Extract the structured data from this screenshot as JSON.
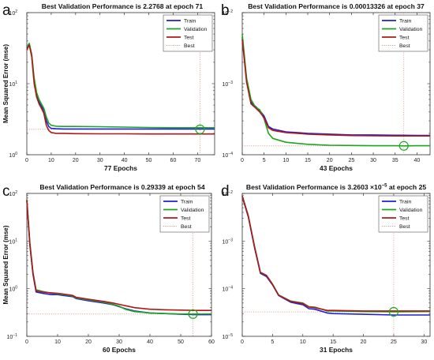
{
  "chart_data": [
    {
      "type": "line",
      "panel_label": "a",
      "title": "Best Validation Performance is 2.2768 at epoch 71",
      "xlabel": "77 Epochs",
      "ylabel": "Mean Squared Error  (mse)",
      "xlim": [
        0,
        77
      ],
      "xticks": [
        "0",
        "10",
        "20",
        "30",
        "40",
        "50",
        "60",
        "70"
      ],
      "xtick_values": [
        0,
        10,
        20,
        30,
        40,
        50,
        60,
        70
      ],
      "yscale": "log",
      "ylim": [
        1,
        100
      ],
      "ytick_exponents": [
        0,
        1,
        2
      ],
      "ytick_labels": [
        "10",
        "10",
        "10"
      ],
      "grid": false,
      "legend_position": "top-right",
      "best": {
        "x": 71,
        "y": 2.2768
      },
      "series": [
        {
          "name": "Train",
          "x": [
            0,
            1,
            2,
            3,
            4,
            5,
            6,
            7,
            8,
            9,
            10,
            12,
            15,
            20,
            30,
            40,
            50,
            60,
            70,
            77
          ],
          "y": [
            32,
            36,
            25,
            11,
            7,
            5.5,
            4.8,
            4.2,
            3,
            2.5,
            2.35,
            2.32,
            2.3,
            2.3,
            2.3,
            2.3,
            2.3,
            2.3,
            2.3,
            2.3
          ]
        },
        {
          "name": "Validation",
          "x": [
            0,
            1,
            2,
            3,
            4,
            5,
            6,
            7,
            8,
            9,
            10,
            12,
            15,
            20,
            30,
            40,
            50,
            60,
            70,
            77
          ],
          "y": [
            33,
            37,
            26,
            12,
            7.5,
            6,
            5.2,
            4.5,
            3.4,
            2.8,
            2.6,
            2.52,
            2.5,
            2.5,
            2.48,
            2.45,
            2.42,
            2.4,
            2.4,
            2.4
          ]
        },
        {
          "name": "Test",
          "x": [
            0,
            1,
            2,
            3,
            4,
            5,
            6,
            7,
            8,
            9,
            10,
            12,
            15,
            20,
            30,
            40,
            50,
            60,
            70,
            77
          ],
          "y": [
            30,
            35,
            24,
            10,
            6.5,
            5.2,
            4.5,
            3.8,
            2.6,
            2.2,
            2.05,
            2.0,
            2.0,
            1.98,
            1.97,
            1.97,
            1.96,
            1.96,
            1.96,
            1.96
          ]
        }
      ],
      "legend": [
        "Train",
        "Validation",
        "Test",
        "Best"
      ],
      "colors": {
        "Train": "#1f1fd6",
        "Validation": "#1ea51e",
        "Test": "#b01818",
        "Best": "#cc7766",
        "best_marker": "#1ea51e"
      }
    },
    {
      "type": "line",
      "panel_label": "b",
      "title": "Best Validation Performance is 0.00013326 at epoch 37",
      "xlabel": "43 Epochs",
      "ylabel": "",
      "xlim": [
        0,
        43
      ],
      "xticks": [
        "0",
        "5",
        "10",
        "15",
        "20",
        "25",
        "30",
        "35",
        "40"
      ],
      "xtick_values": [
        0,
        5,
        10,
        15,
        20,
        25,
        30,
        35,
        40
      ],
      "yscale": "log",
      "ylim": [
        0.0001,
        0.01
      ],
      "ytick_exponents": [
        -4,
        -3,
        -2
      ],
      "ytick_labels": [
        "10",
        "10",
        "10"
      ],
      "grid": false,
      "legend_position": "top-right",
      "best": {
        "x": 37,
        "y": 0.00013326
      },
      "series": [
        {
          "name": "Train",
          "x": [
            0,
            1,
            2,
            3,
            4,
            5,
            6,
            7,
            10,
            15,
            20,
            25,
            30,
            35,
            40,
            43
          ],
          "y": [
            0.0045,
            0.0011,
            0.00055,
            0.00048,
            0.00042,
            0.00035,
            0.00025,
            0.00023,
            0.00021,
            0.0002,
            0.000195,
            0.00019,
            0.00019,
            0.000188,
            0.000187,
            0.000187
          ]
        },
        {
          "name": "Validation",
          "x": [
            0,
            1,
            2,
            3,
            4,
            5,
            6,
            7,
            10,
            15,
            20,
            25,
            30,
            35,
            37,
            40,
            43
          ],
          "y": [
            0.005,
            0.0012,
            0.0006,
            0.00047,
            0.00043,
            0.00032,
            0.0002,
            0.00017,
            0.00015,
            0.00014,
            0.000136,
            0.000135,
            0.000134,
            0.000134,
            0.00013326,
            0.000134,
            0.000134
          ]
        },
        {
          "name": "Test",
          "x": [
            0,
            1,
            2,
            3,
            4,
            5,
            6,
            7,
            10,
            15,
            20,
            25,
            30,
            35,
            40,
            43
          ],
          "y": [
            0.0042,
            0.00105,
            0.00052,
            0.00046,
            0.0004,
            0.00033,
            0.00024,
            0.00022,
            0.000205,
            0.000195,
            0.00019,
            0.000186,
            0.000185,
            0.000184,
            0.000184,
            0.000184
          ]
        }
      ],
      "legend": [
        "Train",
        "Validation",
        "Test",
        "Best"
      ],
      "colors": {
        "Train": "#1f1fd6",
        "Validation": "#1ea51e",
        "Test": "#b01818",
        "Best": "#cc7766",
        "best_marker": "#1ea51e"
      }
    },
    {
      "type": "line",
      "panel_label": "c",
      "title": "Best Validation Performance is 0.29339 at epoch 54",
      "xlabel": "60 Epochs",
      "ylabel": "Mean Squared Error  (mse)",
      "xlim": [
        0,
        60
      ],
      "xticks": [
        "0",
        "10",
        "20",
        "30",
        "40",
        "50",
        "60"
      ],
      "xtick_values": [
        0,
        10,
        20,
        30,
        40,
        50,
        60
      ],
      "yscale": "log",
      "ylim": [
        0.1,
        100
      ],
      "ytick_exponents": [
        -1,
        0,
        1,
        2
      ],
      "ytick_labels": [
        "10",
        "10",
        "10",
        "10"
      ],
      "grid": false,
      "legend_position": "top-right",
      "best": {
        "x": 54,
        "y": 0.29339
      },
      "series": [
        {
          "name": "Train",
          "x": [
            0,
            1,
            2,
            3,
            5,
            8,
            10,
            12,
            15,
            16,
            20,
            25,
            28,
            30,
            32,
            35,
            40,
            45,
            50,
            55,
            60
          ],
          "y": [
            70,
            8,
            2,
            0.85,
            0.8,
            0.75,
            0.75,
            0.72,
            0.68,
            0.62,
            0.56,
            0.5,
            0.46,
            0.42,
            0.38,
            0.34,
            0.31,
            0.3,
            0.29,
            0.285,
            0.285
          ]
        },
        {
          "name": "Validation",
          "x": [
            0,
            1,
            2,
            3,
            5,
            8,
            10,
            12,
            15,
            16,
            20,
            25,
            28,
            30,
            32,
            35,
            40,
            45,
            50,
            54,
            60
          ],
          "y": [
            75,
            9,
            2.2,
            0.95,
            0.88,
            0.8,
            0.78,
            0.75,
            0.7,
            0.64,
            0.58,
            0.52,
            0.47,
            0.43,
            0.37,
            0.33,
            0.31,
            0.3,
            0.295,
            0.29339,
            0.295
          ]
        },
        {
          "name": "Test",
          "x": [
            0,
            1,
            2,
            3,
            5,
            8,
            10,
            12,
            15,
            16,
            20,
            25,
            28,
            30,
            32,
            35,
            40,
            45,
            50,
            55,
            60
          ],
          "y": [
            72,
            8.5,
            2.1,
            0.9,
            0.85,
            0.82,
            0.8,
            0.77,
            0.72,
            0.66,
            0.6,
            0.54,
            0.5,
            0.47,
            0.44,
            0.4,
            0.37,
            0.36,
            0.355,
            0.35,
            0.35
          ]
        }
      ],
      "legend": [
        "Train",
        "Validation",
        "Test",
        "Best"
      ],
      "colors": {
        "Train": "#1f1fd6",
        "Validation": "#1ea51e",
        "Test": "#b01818",
        "Best": "#cc7766",
        "best_marker": "#1ea51e"
      }
    },
    {
      "type": "line",
      "panel_label": "d",
      "title": "Best Validation Performance is 3.2603 ×10",
      "title_exponent": "−5",
      "title_suffix": " at epoch 25",
      "xlabel": "31 Epochs",
      "ylabel": "",
      "xlim": [
        0,
        31
      ],
      "xticks": [
        "0",
        "5",
        "10",
        "15",
        "20",
        "25",
        "30"
      ],
      "xtick_values": [
        0,
        5,
        10,
        15,
        20,
        25,
        30
      ],
      "yscale": "log",
      "ylim": [
        1e-05,
        0.01
      ],
      "ytick_exponents": [
        -5,
        -4,
        -3,
        -2
      ],
      "ytick_labels": [
        "10",
        "10",
        "10",
        "10"
      ],
      "grid": false,
      "legend_position": "top-right",
      "best": {
        "x": 25,
        "y": 3.2603e-05
      },
      "series": [
        {
          "name": "Train",
          "x": [
            0,
            1,
            2,
            3,
            4,
            5,
            6,
            8,
            10,
            11,
            12,
            14,
            15,
            20,
            25,
            30,
            31
          ],
          "y": [
            0.0085,
            0.0032,
            0.00075,
            0.00021,
            0.00018,
            0.00012,
            7.2e-05,
            5.2e-05,
            4.6e-05,
            3.8e-05,
            3.7e-05,
            3.1e-05,
            3e-05,
            2.9e-05,
            2.8e-05,
            2.8e-05,
            2.8e-05
          ]
        },
        {
          "name": "Validation",
          "x": [
            0,
            1,
            2,
            3,
            4,
            5,
            6,
            8,
            10,
            11,
            12,
            14,
            15,
            20,
            25,
            30,
            31
          ],
          "y": [
            0.009,
            0.0034,
            0.0008,
            0.00022,
            0.00019,
            0.000125,
            7.4e-05,
            5.5e-05,
            5e-05,
            4.2e-05,
            4.1e-05,
            3.4e-05,
            3.4e-05,
            3.3e-05,
            3.2603e-05,
            3.3e-05,
            3.3e-05
          ]
        },
        {
          "name": "Test",
          "x": [
            0,
            1,
            2,
            3,
            4,
            5,
            6,
            8,
            10,
            11,
            12,
            14,
            15,
            20,
            25,
            30,
            31
          ],
          "y": [
            0.0088,
            0.0033,
            0.00078,
            0.00022,
            0.00019,
            0.000122,
            7.3e-05,
            5.4e-05,
            4.9e-05,
            4.1e-05,
            4e-05,
            3.5e-05,
            3.5e-05,
            3.4e-05,
            3.4e-05,
            3.4e-05,
            3.4e-05
          ]
        }
      ],
      "legend": [
        "Train",
        "Validation",
        "Test",
        "Best"
      ],
      "colors": {
        "Train": "#1f1fd6",
        "Validation": "#1ea51e",
        "Test": "#b01818",
        "Best": "#cc7766",
        "best_marker": "#1ea51e"
      }
    }
  ]
}
